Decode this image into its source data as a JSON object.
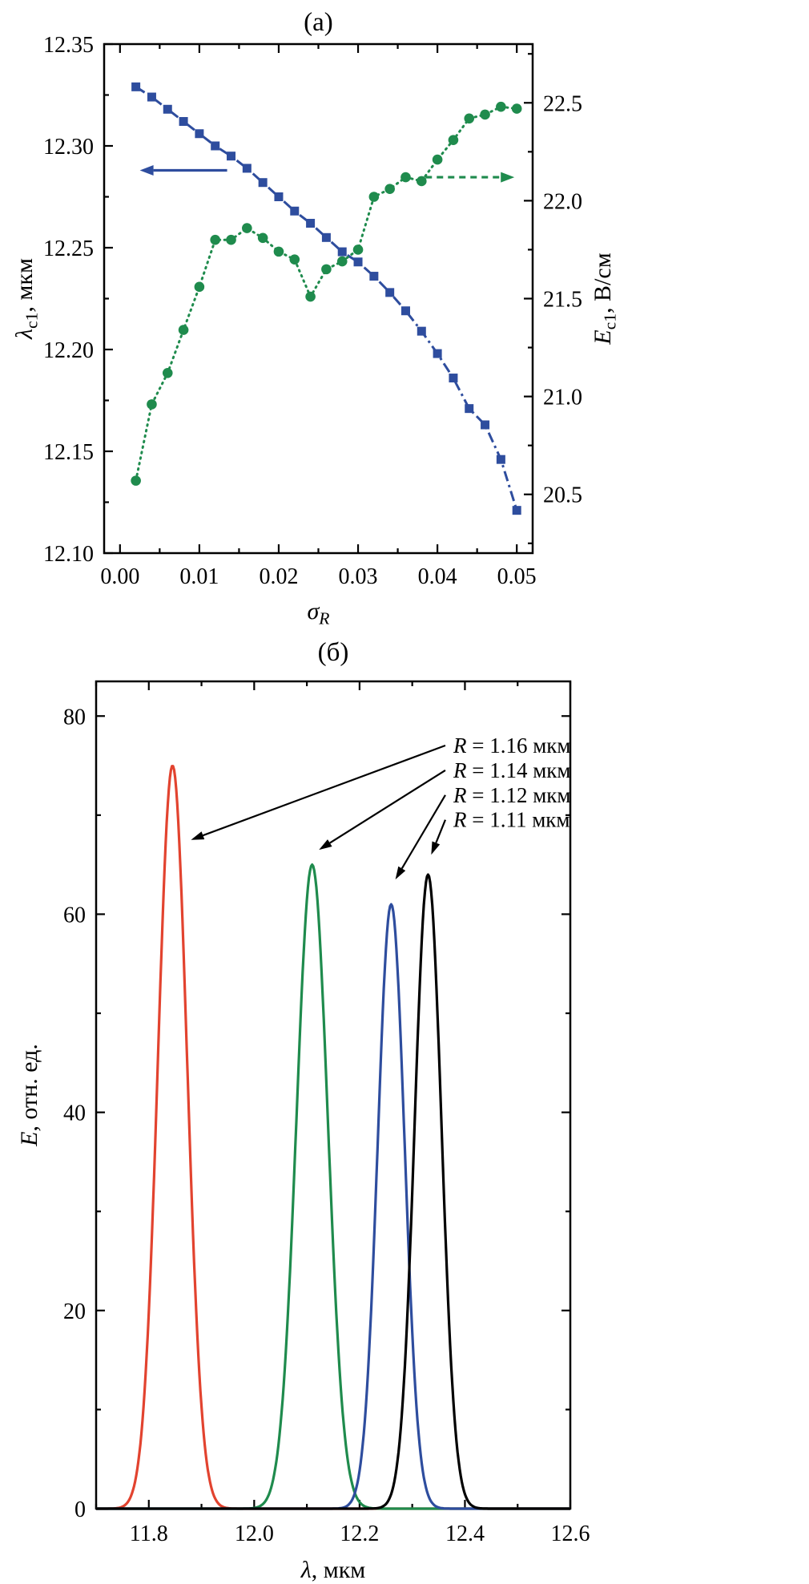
{
  "figure": {
    "background": "#ffffff",
    "colors": {
      "blue": "#2e4d9e",
      "green": "#1f8b4d",
      "red": "#e2432f",
      "black": "#000000"
    }
  },
  "chart_data": [
    {
      "type": "line",
      "panel": "a",
      "title": "(а)",
      "xlabel": "*σ*_{*R*}",
      "xlim": [
        -0.002,
        0.052
      ],
      "grid": false,
      "legend": "none",
      "xticks": {
        "major": [
          0,
          0.01,
          0.02,
          0.03,
          0.04,
          0.05
        ],
        "labels": [
          "0.00",
          "0.01",
          "0.02",
          "0.03",
          "0.04",
          "0.05"
        ],
        "minor_step": 0.005
      },
      "axes": {
        "left": {
          "label": "*λ*_{c1}, мкм",
          "lim": [
            12.1,
            12.35
          ],
          "major": [
            12.1,
            12.15,
            12.2,
            12.25,
            12.3,
            12.35
          ],
          "labels": [
            "12.10",
            "12.15",
            "12.20",
            "12.25",
            "12.30",
            "12.35"
          ],
          "minor_step": 0.025
        },
        "right": {
          "label": "*E*_{c1}, В/см",
          "lim": [
            20.2,
            22.8
          ],
          "major": [
            20.5,
            21.0,
            21.5,
            22.0,
            22.5
          ],
          "labels": [
            "20.5",
            "21.0",
            "21.5",
            "22.0",
            "22.5"
          ],
          "minor_step": 0.25
        }
      },
      "series": [
        {
          "name": "lambda-c1",
          "axis": "left",
          "color": "#2e4d9e",
          "marker": "square",
          "line_style": "dashdot",
          "x": [
            0.002,
            0.004,
            0.006,
            0.008,
            0.01,
            0.012,
            0.014,
            0.016,
            0.018,
            0.02,
            0.022,
            0.024,
            0.026,
            0.028,
            0.03,
            0.032,
            0.034,
            0.036,
            0.038,
            0.04,
            0.042,
            0.044,
            0.046,
            0.048,
            0.05
          ],
          "y": [
            12.329,
            12.324,
            12.318,
            12.312,
            12.306,
            12.3,
            12.295,
            12.289,
            12.282,
            12.275,
            12.268,
            12.262,
            12.255,
            12.248,
            12.243,
            12.236,
            12.228,
            12.219,
            12.209,
            12.198,
            12.186,
            12.171,
            12.163,
            12.146,
            12.121
          ]
        },
        {
          "name": "E-c1",
          "axis": "right",
          "color": "#1f8b4d",
          "marker": "circle",
          "line_style": "dotted",
          "x": [
            0.002,
            0.004,
            0.006,
            0.008,
            0.01,
            0.012,
            0.014,
            0.016,
            0.018,
            0.02,
            0.022,
            0.024,
            0.026,
            0.028,
            0.03,
            0.032,
            0.034,
            0.036,
            0.038,
            0.04,
            0.042,
            0.044,
            0.046,
            0.048,
            0.05
          ],
          "y": [
            20.57,
            20.96,
            21.12,
            21.34,
            21.56,
            21.8,
            21.8,
            21.86,
            21.81,
            21.74,
            21.7,
            21.51,
            21.65,
            21.69,
            21.75,
            22.02,
            22.06,
            22.12,
            22.1,
            22.21,
            22.31,
            22.42,
            22.44,
            22.48,
            22.47
          ]
        }
      ],
      "arrows": [
        {
          "name": "left-axis-arrow",
          "color": "#2e4d9e",
          "dashed": false,
          "axis": "left",
          "from": [
            0.0135,
            12.288
          ],
          "to": [
            0.0025,
            12.288
          ]
        },
        {
          "name": "right-axis-arrow",
          "color": "#1f8b4d",
          "dashed": true,
          "axis": "right",
          "from": [
            0.0385,
            22.12
          ],
          "to": [
            0.0497,
            22.12
          ]
        }
      ]
    },
    {
      "type": "line",
      "panel": "б",
      "title": "(б)",
      "xlabel": "*λ*, мкм",
      "ylabel": "*E*, отн. ед.",
      "xlim": [
        11.7,
        12.6
      ],
      "ylim": [
        0,
        83.5
      ],
      "grid": false,
      "xticks": {
        "major": [
          11.8,
          12.0,
          12.2,
          12.4,
          12.6
        ],
        "labels": [
          "11.8",
          "12.0",
          "12.2",
          "12.4",
          "12.6"
        ],
        "minor_step": 0.1
      },
      "yticks": {
        "major": [
          0,
          20,
          40,
          60,
          80
        ],
        "labels": [
          "0",
          "20",
          "40",
          "60",
          "80"
        ],
        "minor_step": 10
      },
      "peaks": [
        {
          "label": "*R* = 1.16 мкм",
          "color": "#e2432f",
          "center": 11.845,
          "height": 75.0,
          "fwhm": 0.065
        },
        {
          "label": "*R* = 1.14 мкм",
          "color": "#1f8b4d",
          "center": 12.11,
          "height": 65.0,
          "fwhm": 0.07
        },
        {
          "label": "*R* = 1.12 мкм",
          "color": "#2e4d9e",
          "center": 12.26,
          "height": 61.0,
          "fwhm": 0.06
        },
        {
          "label": "*R* = 1.11 мкм",
          "color": "#000000",
          "center": 12.33,
          "height": 64.0,
          "fwhm": 0.06
        }
      ],
      "annotations": [
        {
          "peak": 0,
          "text_pos": [
            12.378,
            76.3
          ],
          "arrow_to": [
            11.88,
            67.5
          ]
        },
        {
          "peak": 1,
          "text_pos": [
            12.378,
            73.8
          ],
          "arrow_to": [
            12.123,
            66.5
          ]
        },
        {
          "peak": 2,
          "text_pos": [
            12.378,
            71.3
          ],
          "arrow_to": [
            12.268,
            63.5
          ]
        },
        {
          "peak": 3,
          "text_pos": [
            12.378,
            68.8
          ],
          "arrow_to": [
            12.336,
            66.0
          ]
        }
      ]
    }
  ]
}
